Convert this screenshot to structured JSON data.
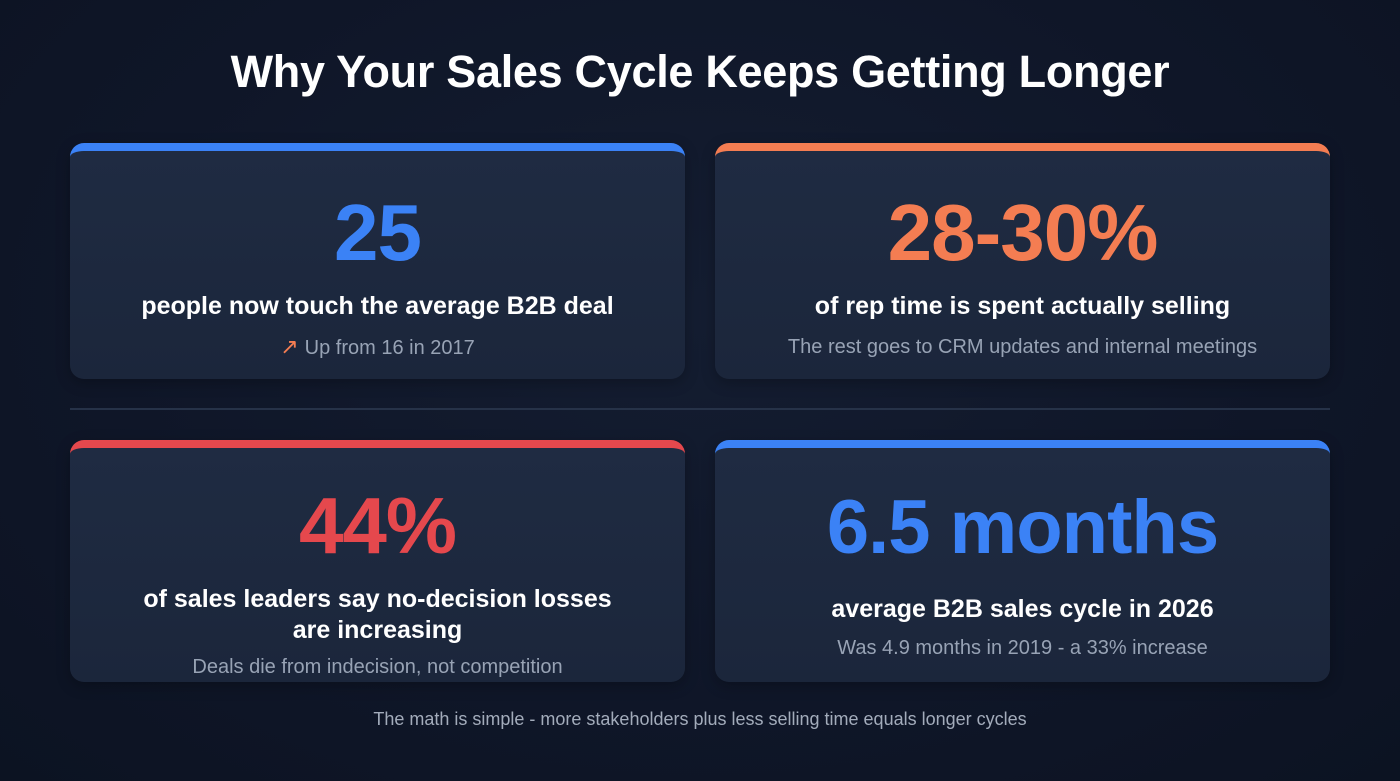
{
  "title": "Why Your Sales Cycle Keeps Getting Longer",
  "cards": [
    {
      "value": "25",
      "label": "people now touch the average B2B deal",
      "sub": "Up from 16 in 2017",
      "icon": "trend-up-arrow-icon",
      "icon_glyph": "↗",
      "accent": "#3b82f6"
    },
    {
      "value": "28-30%",
      "label": "of rep time is spent actually selling",
      "sub": "The rest goes to CRM updates and internal meetings",
      "accent": "#f47d52"
    },
    {
      "value": "44%",
      "label": "of sales leaders say no-decision losses are increasing",
      "sub": "Deals die from indecision, not competition",
      "accent": "#e5484d"
    },
    {
      "value": "6.5 months",
      "label": "average B2B sales cycle in 2026",
      "sub": "Was 4.9 months in 2019 - a 33% increase",
      "accent": "#3b82f6"
    }
  ],
  "footer": "The math is simple - more stakeholders plus less selling time equals longer cycles"
}
